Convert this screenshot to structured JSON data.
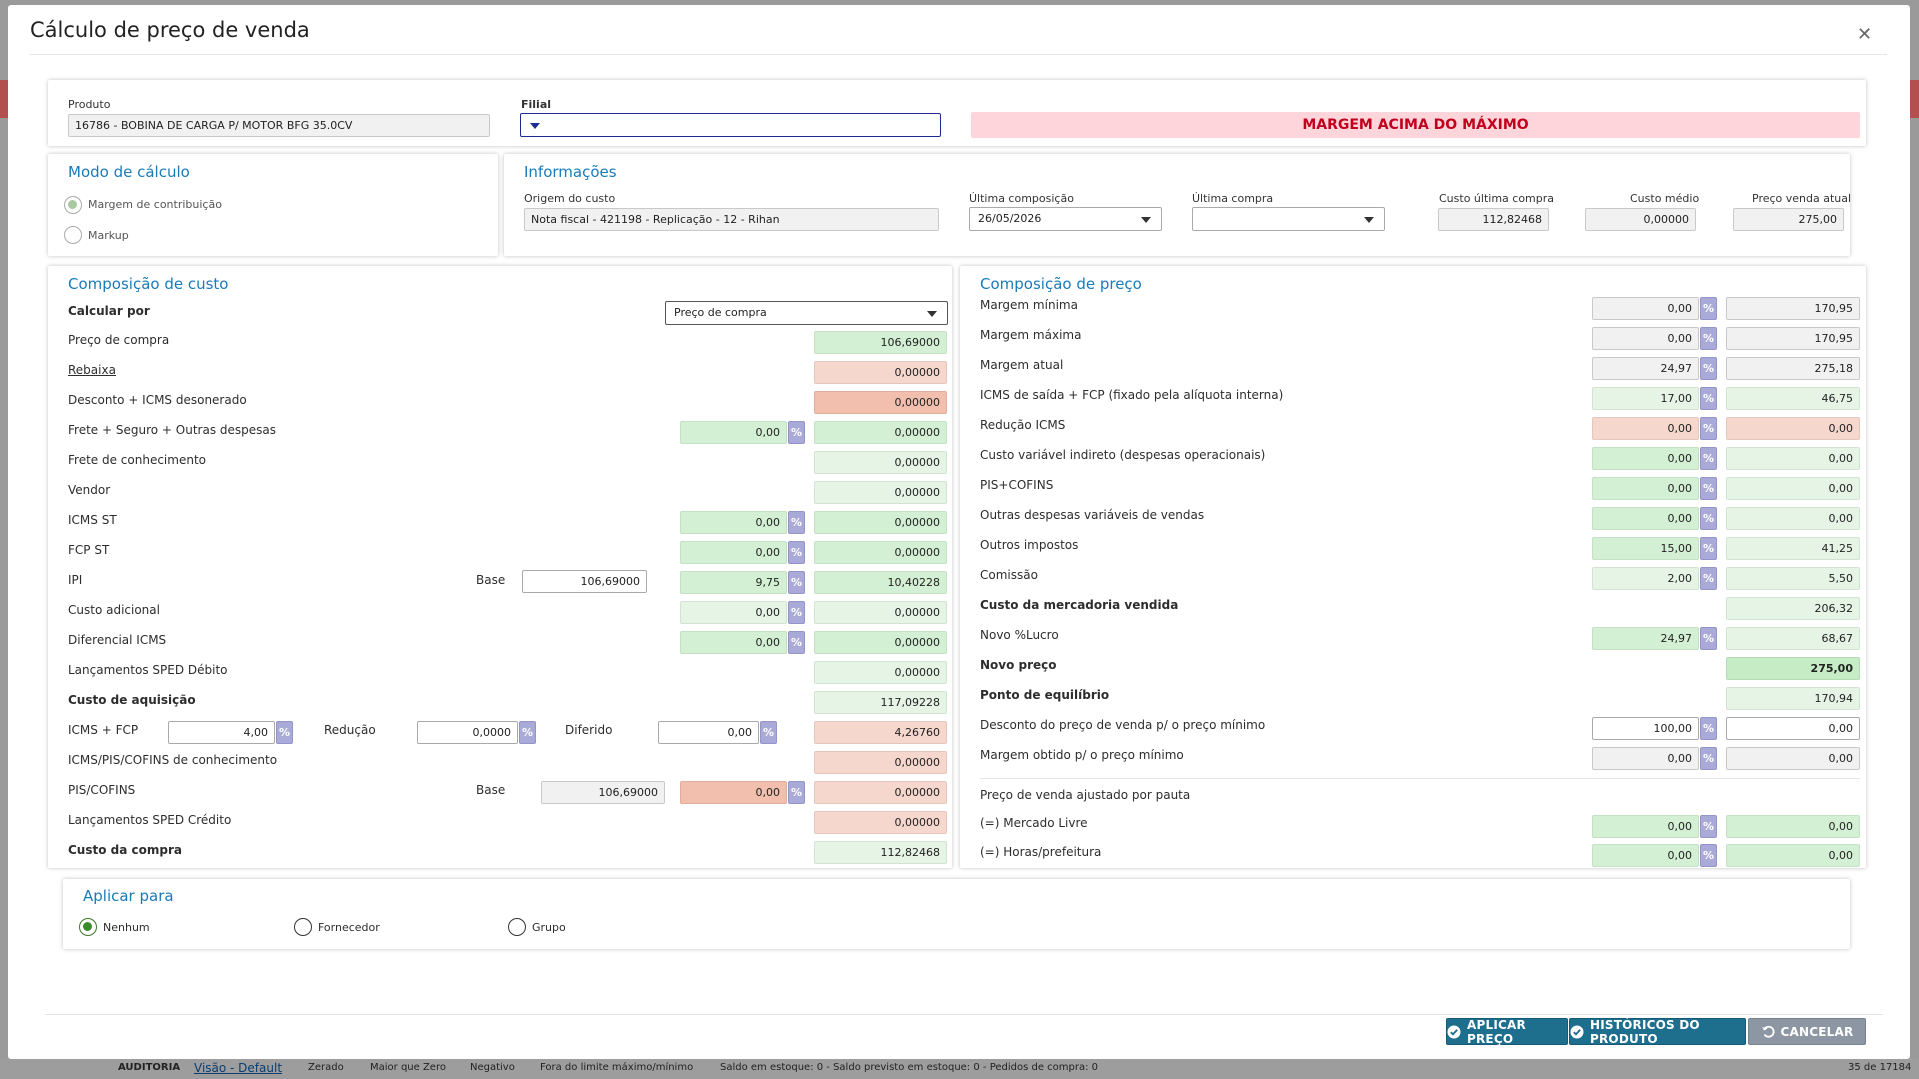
{
  "title": "Cálculo de preço de venda",
  "header": {
    "produto_label": "Produto",
    "produto_value": "16786 -  BOBINA DE CARGA  P/ MOTOR BFG 35.0CV",
    "filial_label": "Filial",
    "filial_value": "",
    "alert": "MARGEM ACIMA DO MÁXIMO"
  },
  "modo": {
    "title": "Modo de cálculo",
    "options": [
      "Margem de contribuição",
      "Markup"
    ]
  },
  "info": {
    "title": "Informações",
    "origem_label": "Origem do custo",
    "origem_value": "Nota fiscal - 421198 - Replicação - 12 - Rihan",
    "ultima_comp_label": "Última composição",
    "ultima_comp_value": "26/05/2026",
    "ultima_compra_label": "Última compra",
    "ultima_compra_value": "",
    "custo_ultima_label": "Custo última compra",
    "custo_ultima_value": "112,82468",
    "custo_medio_label": "Custo médio",
    "custo_medio_value": "0,00000",
    "preco_atual_label": "Preço venda atual",
    "preco_atual_value": "275,00"
  },
  "custo": {
    "title": "Composição de custo",
    "calcular_label": "Calcular por",
    "calcular_value": "Preço de compra",
    "base_label": "Base",
    "rows": {
      "preco_compra": {
        "label": "Preço de compra",
        "value": "106,69000"
      },
      "rebaixa": {
        "label": "Rebaixa",
        "value": "0,00000"
      },
      "desconto": {
        "label": "Desconto + ICMS desonerado",
        "value": "0,00000"
      },
      "frete": {
        "label": "Frete + Seguro + Outras despesas",
        "pct": "0,00",
        "value": "0,00000"
      },
      "frete_conh": {
        "label": "Frete de conhecimento",
        "value": "0,00000"
      },
      "vendor": {
        "label": "Vendor",
        "value": "0,00000"
      },
      "icms_st": {
        "label": "ICMS ST",
        "pct": "0,00",
        "value": "0,00000"
      },
      "fcp_st": {
        "label": "FCP ST",
        "pct": "0,00",
        "value": "0,00000"
      },
      "ipi": {
        "label": "IPI",
        "base": "106,69000",
        "pct": "9,75",
        "value": "10,40228"
      },
      "custo_adic": {
        "label": "Custo adicional",
        "pct": "0,00",
        "value": "0,00000"
      },
      "dif_icms": {
        "label": "Diferencial ICMS",
        "pct": "0,00",
        "value": "0,00000"
      },
      "sped_deb": {
        "label": "Lançamentos SPED Débito",
        "value": "0,00000"
      },
      "custo_aq": {
        "label": "Custo de aquisição",
        "value": "117,09228"
      },
      "icms_fcp": {
        "label": "ICMS + FCP",
        "pct": "4,00",
        "reducao_label": "Redução",
        "reducao": "0,0000",
        "diferido_label": "Diferido",
        "diferido": "0,00",
        "value": "4,26760"
      },
      "icms_pis_conh": {
        "label": "ICMS/PIS/COFINS de conhecimento",
        "value": "0,00000"
      },
      "pis_cofins": {
        "label": "PIS/COFINS",
        "base": "106,69000",
        "pct": "0,00",
        "value": "0,00000"
      },
      "sped_cred": {
        "label": "Lançamentos SPED Crédito",
        "value": "0,00000"
      },
      "custo_compra": {
        "label": "Custo da compra",
        "value": "112,82468"
      }
    }
  },
  "preco": {
    "title": "Composição de preço",
    "rows": {
      "margem_min": {
        "label": "Margem mínima",
        "pct": "0,00",
        "value": "170,95"
      },
      "margem_max": {
        "label": "Margem máxima",
        "pct": "0,00",
        "value": "170,95"
      },
      "margem_atual": {
        "label": "Margem atual",
        "pct": "24,97",
        "value": "275,18"
      },
      "icms_saida": {
        "label": "ICMS de saída + FCP (fixado pela alíquota interna)",
        "pct": "17,00",
        "value": "46,75"
      },
      "reducao_icms": {
        "label": "Redução ICMS",
        "pct": "0,00",
        "value": "0,00"
      },
      "custo_var": {
        "label": "Custo variável indireto (despesas operacionais)",
        "pct": "0,00",
        "value": "0,00"
      },
      "pis_cofins": {
        "label": "PIS+COFINS",
        "pct": "0,00",
        "value": "0,00"
      },
      "outras_desp": {
        "label": "Outras despesas variáveis de vendas",
        "pct": "0,00",
        "value": "0,00"
      },
      "outros_imp": {
        "label": "Outros impostos",
        "pct": "15,00",
        "value": "41,25"
      },
      "comissao": {
        "label": "Comissão",
        "pct": "2,00",
        "value": "5,50"
      },
      "cmv": {
        "label": "Custo da mercadoria vendida",
        "value": "206,32"
      },
      "novo_lucro": {
        "label": "Novo %Lucro",
        "pct": "24,97",
        "value": "68,67"
      },
      "novo_preco": {
        "label": "Novo preço",
        "value": "275,00"
      },
      "ponto_eq": {
        "label": "Ponto de equilíbrio",
        "value": "170,94"
      },
      "desconto_min": {
        "label": "Desconto do preço de venda p/ o preço mínimo",
        "pct": "100,00",
        "value": "0,00"
      },
      "margem_obtida": {
        "label": "Margem obtido p/ o preço mínimo",
        "pct": "0,00",
        "value": "0,00"
      },
      "pauta_label": "Preço de venda ajustado por pauta",
      "mercado_livre": {
        "label": "(=) Mercado Livre",
        "pct": "0,00",
        "value": "0,00"
      },
      "horas": {
        "label": "(=) Horas/prefeitura",
        "pct": "0,00",
        "value": "0,00"
      }
    }
  },
  "pct_symbol": "%",
  "aplicar": {
    "title": "Aplicar para",
    "options": [
      "Nenhum",
      "Fornecedor",
      "Grupo"
    ]
  },
  "buttons": {
    "aplicar": "APLICAR PREÇO",
    "historicos": "HISTÓRICOS DO PRODUTO",
    "cancelar": "CANCELAR"
  },
  "bottombar": {
    "auditoria": "AUDITORIA",
    "visao": "Visão - Default",
    "zerado": "Zerado",
    "maior": "Maior que Zero",
    "negativo": "Negativo",
    "fora": "Fora do limite máximo/mínimo",
    "saldo": "Saldo em estoque: 0 - Saldo previsto em estoque: 0 - Pedidos de compra: 0",
    "count": "35 de 17184"
  },
  "colors": {
    "accent": "#1a7bb9",
    "alert_bg": "#ffd5dc",
    "alert_text": "#c0001c",
    "teal_button": "#1e6e8e"
  }
}
